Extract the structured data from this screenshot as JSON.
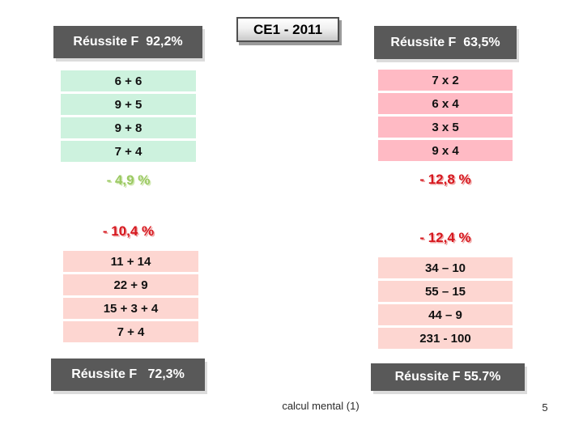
{
  "slide": {
    "badge": {
      "label": "CE1 - 2011"
    },
    "footer": {
      "caption": "calcul mental (1)",
      "page": "5"
    },
    "colors": {
      "score-bg": "#595959",
      "score-text": "#ffffff",
      "green-row": "#cdf2de",
      "pink-row": "#ffbac4",
      "light-pink-row": "#fdd6d1",
      "delta-green": "#9bc962",
      "delta-red": "#d6181f"
    },
    "left": {
      "score_top": "Réussite F  92,2%",
      "rows_top": [
        "6 + 6",
        "9 + 5",
        "9 + 8",
        "7 + 4"
      ],
      "delta_top": "- 4,9 %",
      "delta_bottom": "- 10,4 %",
      "rows_bottom": [
        "11 + 14",
        "22 + 9",
        "15 + 3 + 4",
        "7 + 4"
      ],
      "score_bottom": "Réussite F   72,3%"
    },
    "right": {
      "score_top": "Réussite F  63,5%",
      "rows_top": [
        "7 x 2",
        "6 x 4",
        "3 x 5",
        "9 x 4"
      ],
      "delta_top": "- 12,8 %",
      "delta_bottom": "- 12,4 %",
      "rows_bottom": [
        "34 – 10",
        "55 – 15",
        "44 – 9",
        "231 - 100"
      ],
      "score_bottom": "Réussite F 55.7%"
    }
  }
}
